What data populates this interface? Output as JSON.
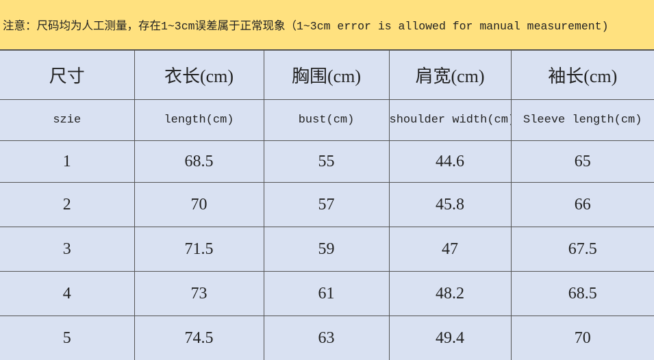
{
  "header": {
    "note": "注意：尺码均为人工测量，存在1~3cm误差属于正常现象（1~3cm error is allowed for manual measurement)"
  },
  "table": {
    "columns_cn": [
      "尺寸",
      "衣长(cm)",
      "胸围(cm)",
      "肩宽(cm)",
      "袖长(cm)"
    ],
    "columns_en": [
      "szie",
      "length(cm)",
      "bust(cm)",
      "shoulder width(cm)",
      "Sleeve length(cm)"
    ],
    "rows": [
      [
        1,
        68.5,
        55,
        44.6,
        65
      ],
      [
        2,
        70,
        57,
        45.8,
        66
      ],
      [
        3,
        71.5,
        59,
        47,
        67.5
      ],
      [
        4,
        73,
        61,
        48.2,
        68.5
      ],
      [
        5,
        74.5,
        63,
        49.4,
        70
      ]
    ]
  }
}
